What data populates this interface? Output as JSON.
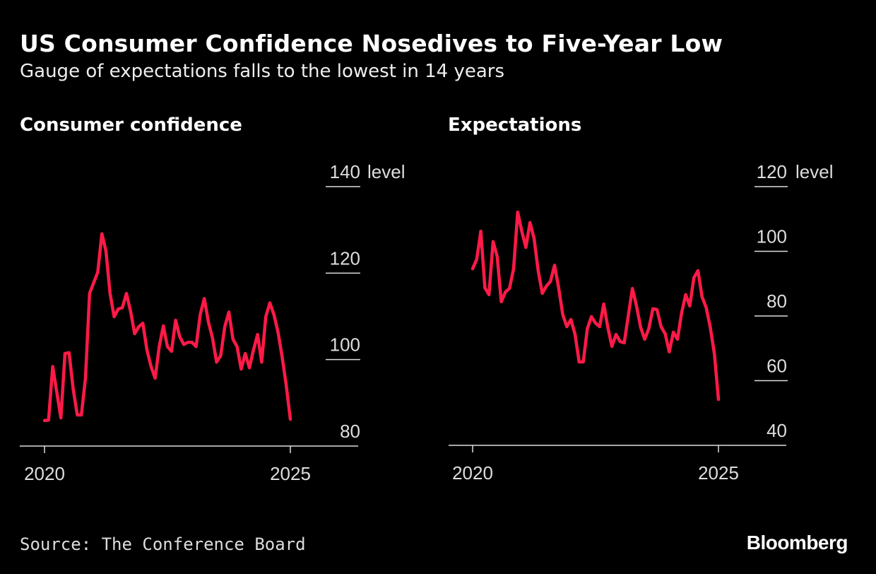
{
  "title": "US Consumer Confidence Nosedives to Five-Year Low",
  "subtitle": "Gauge of expectations falls to the lowest in 14 years",
  "source": "Source: The Conference Board",
  "logo": "Bloomberg",
  "colors": {
    "line": "#ff1a47",
    "background": "#000000",
    "axis": "#dddddd"
  },
  "chart_data": [
    {
      "type": "line",
      "title": "Consumer confidence",
      "unit_label": "level",
      "ylim": [
        80,
        140
      ],
      "yticks": [
        "140",
        "120",
        "100",
        "80"
      ],
      "ytick_values": [
        140,
        120,
        100,
        80
      ],
      "xticks": [
        "2020",
        "2025"
      ],
      "xlim": [
        "2019-12",
        "2026-01"
      ],
      "grid": false,
      "series": [
        {
          "values": [
            [
              "2020-01",
              85.9
            ],
            [
              "2020-02",
              86.0
            ],
            [
              "2020-03",
              98.4
            ],
            [
              "2020-05",
              86.5
            ],
            [
              "2020-06",
              101.4
            ],
            [
              "2020-07",
              101.6
            ],
            [
              "2020-08",
              93.2
            ],
            [
              "2020-09",
              87.2
            ],
            [
              "2020-10",
              87.2
            ],
            [
              "2020-11",
              95.7
            ],
            [
              "2020-12",
              115.3
            ],
            [
              "2021-02",
              120.2
            ],
            [
              "2021-03",
              129.1
            ],
            [
              "2021-04",
              125.1
            ],
            [
              "2021-05",
              115.3
            ],
            [
              "2021-06",
              109.9
            ],
            [
              "2021-07",
              111.7
            ],
            [
              "2021-08",
              112.0
            ],
            [
              "2021-09",
              115.3
            ],
            [
              "2021-10",
              111.2
            ],
            [
              "2021-11",
              106.0
            ],
            [
              "2021-12",
              107.6
            ],
            [
              "2022-01",
              108.4
            ],
            [
              "2022-02",
              102.2
            ],
            [
              "2022-03",
              98.4
            ],
            [
              "2022-04",
              95.7
            ],
            [
              "2022-05",
              103.0
            ],
            [
              "2022-06",
              107.8
            ],
            [
              "2022-07",
              103.0
            ],
            [
              "2022-08",
              101.9
            ],
            [
              "2022-09",
              109.1
            ],
            [
              "2022-10",
              105.3
            ],
            [
              "2022-11",
              103.5
            ],
            [
              "2022-12",
              104.0
            ],
            [
              "2023-01",
              104.0
            ],
            [
              "2023-02",
              103.0
            ],
            [
              "2023-03",
              110.4
            ],
            [
              "2023-04",
              114.1
            ],
            [
              "2023-05",
              108.7
            ],
            [
              "2023-06",
              105.0
            ],
            [
              "2023-07",
              99.4
            ],
            [
              "2023-08",
              100.9
            ],
            [
              "2023-09",
              107.6
            ],
            [
              "2023-10",
              111.0
            ],
            [
              "2023-11",
              104.7
            ],
            [
              "2023-12",
              103.0
            ],
            [
              "2024-01",
              97.8
            ],
            [
              "2024-02",
              101.4
            ],
            [
              "2024-03",
              98.1
            ],
            [
              "2024-04",
              102.2
            ],
            [
              "2024-05",
              105.8
            ],
            [
              "2024-06",
              99.4
            ],
            [
              "2024-07",
              109.9
            ],
            [
              "2024-08",
              113.1
            ],
            [
              "2024-09",
              110.4
            ],
            [
              "2024-10",
              106.3
            ],
            [
              "2024-11",
              100.6
            ],
            [
              "2024-12",
              94.0
            ],
            [
              "2025-01",
              86.2
            ]
          ]
        }
      ]
    },
    {
      "type": "line",
      "title": "Expectations",
      "unit_label": "level",
      "ylim": [
        40,
        120
      ],
      "yticks": [
        "120",
        "100",
        "80",
        "60",
        "40"
      ],
      "ytick_values": [
        120,
        100,
        80,
        60,
        40
      ],
      "xticks": [
        "2020",
        "2025"
      ],
      "xlim": [
        "2019-12",
        "2026-01"
      ],
      "grid": false,
      "series": [
        {
          "values": [
            [
              "2020-01",
              94.6
            ],
            [
              "2020-02",
              97.5
            ],
            [
              "2020-03",
              106.2
            ],
            [
              "2020-04",
              88.7
            ],
            [
              "2020-05",
              86.6
            ],
            [
              "2020-06",
              103.0
            ],
            [
              "2020-07",
              98.4
            ],
            [
              "2020-08",
              84.4
            ],
            [
              "2020-09",
              87.4
            ],
            [
              "2020-10",
              88.5
            ],
            [
              "2020-11",
              94.6
            ],
            [
              "2020-12",
              112.1
            ],
            [
              "2021-01",
              106.2
            ],
            [
              "2021-02",
              101.2
            ],
            [
              "2021-03",
              108.9
            ],
            [
              "2021-04",
              104.0
            ],
            [
              "2021-05",
              94.0
            ],
            [
              "2021-06",
              87.0
            ],
            [
              "2021-07",
              89.2
            ],
            [
              "2021-08",
              90.7
            ],
            [
              "2021-09",
              95.7
            ],
            [
              "2021-10",
              88.7
            ],
            [
              "2021-11",
              80.4
            ],
            [
              "2021-12",
              76.7
            ],
            [
              "2022-01",
              78.9
            ],
            [
              "2022-02",
              74.3
            ],
            [
              "2022-03",
              65.8
            ],
            [
              "2022-04",
              65.8
            ],
            [
              "2022-05",
              76.1
            ],
            [
              "2022-06",
              79.8
            ],
            [
              "2022-07",
              77.8
            ],
            [
              "2022-08",
              76.7
            ],
            [
              "2022-09",
              83.7
            ],
            [
              "2022-10",
              76.5
            ],
            [
              "2022-11",
              70.6
            ],
            [
              "2022-12",
              74.3
            ],
            [
              "2023-01",
              72.1
            ],
            [
              "2023-02",
              71.7
            ],
            [
              "2023-04",
              88.5
            ],
            [
              "2023-05",
              83.1
            ],
            [
              "2023-06",
              76.5
            ],
            [
              "2023-07",
              72.8
            ],
            [
              "2023-08",
              76.1
            ],
            [
              "2023-09",
              82.2
            ],
            [
              "2023-10",
              82.0
            ],
            [
              "2023-11",
              76.7
            ],
            [
              "2023-12",
              74.5
            ],
            [
              "2024-01",
              68.9
            ],
            [
              "2024-02",
              75.0
            ],
            [
              "2024-03",
              72.8
            ],
            [
              "2024-04",
              80.9
            ],
            [
              "2024-05",
              86.6
            ],
            [
              "2024-06",
              83.1
            ],
            [
              "2024-07",
              91.8
            ],
            [
              "2024-08",
              94.0
            ],
            [
              "2024-09",
              85.9
            ],
            [
              "2024-10",
              82.6
            ],
            [
              "2024-11",
              76.5
            ],
            [
              "2024-12",
              68.4
            ],
            [
              "2025-01",
              54.2
            ]
          ]
        }
      ]
    }
  ]
}
